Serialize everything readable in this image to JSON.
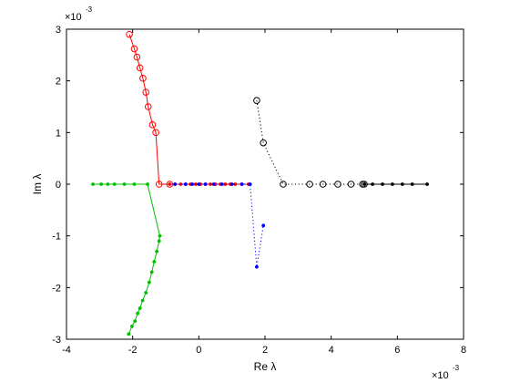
{
  "chart_data": {
    "type": "scatter",
    "title": "",
    "xlabel": "Re λ",
    "ylabel": "Im λ",
    "xlim": [
      -4,
      8
    ],
    "ylim": [
      -3,
      3
    ],
    "xticks": [
      -4,
      -2,
      0,
      2,
      4,
      6,
      8
    ],
    "yticks": [
      -3,
      -2,
      -1,
      0,
      1,
      2,
      3
    ],
    "x_exponent_label": "×10",
    "x_exponent": "-3",
    "y_exponent_label": "×10",
    "y_exponent": "-3",
    "grid": false,
    "legend": "none",
    "series": [
      {
        "color": "#ff0000",
        "marker": "circle",
        "line": "solid",
        "x": [
          -2.1,
          -1.95,
          -1.87,
          -1.78,
          -1.69,
          -1.6,
          -1.53,
          -1.4,
          -1.3,
          -1.2,
          -0.88
        ],
        "y": [
          2.9,
          2.62,
          2.46,
          2.25,
          2.05,
          1.78,
          1.5,
          1.15,
          1.0,
          0.0,
          0.0
        ]
      },
      {
        "color": "#ff0000",
        "marker": "dot",
        "line": "solid",
        "x": [
          -0.88,
          -0.72,
          -0.55,
          -0.4,
          -0.25,
          -0.1,
          0.05,
          0.2,
          0.35,
          0.5,
          0.65,
          0.8,
          0.95,
          1.1,
          1.3,
          1.5
        ],
        "y": [
          0,
          0,
          0,
          0,
          0,
          0,
          0,
          0,
          0,
          0,
          0,
          0,
          0,
          0,
          0,
          0
        ]
      },
      {
        "color": "#0000ff",
        "marker": "dot",
        "line": "dotted",
        "x": [
          -0.72,
          -0.4,
          -0.2,
          0.0,
          0.2,
          0.45,
          0.7,
          1.0,
          1.3,
          1.55,
          1.75,
          1.95
        ],
        "y": [
          0,
          0,
          0,
          0,
          0,
          0,
          0,
          0,
          0,
          0,
          -1.6,
          -0.8
        ]
      },
      {
        "color": "#00c000",
        "marker": "dot",
        "line": "solid",
        "x": [
          -3.2,
          -2.95,
          -2.75,
          -2.55,
          -2.25,
          -1.95,
          -1.55,
          -1.18,
          -1.2,
          -1.27,
          -1.35,
          -1.42,
          -1.5,
          -1.6,
          -1.7,
          -1.78,
          -1.85,
          -1.93,
          -2.02,
          -2.12
        ],
        "y": [
          0,
          0,
          0,
          0,
          0,
          0,
          0,
          -1.0,
          -1.1,
          -1.3,
          -1.5,
          -1.7,
          -1.9,
          -2.1,
          -2.25,
          -2.4,
          -2.5,
          -2.65,
          -2.75,
          -2.9
        ]
      },
      {
        "color": "#000000",
        "marker": "circle",
        "line": "dotted",
        "x": [
          1.75,
          1.95,
          2.55,
          3.35,
          3.75,
          4.2,
          4.6,
          4.95,
          5.0
        ],
        "y": [
          1.62,
          0.8,
          0.0,
          0.0,
          0.0,
          0.0,
          0.0,
          0.0,
          0.0
        ]
      },
      {
        "color": "#000000",
        "marker": "dot",
        "line": "solid",
        "x": [
          5.0,
          5.25,
          5.55,
          5.85,
          6.15,
          6.45,
          6.9
        ],
        "y": [
          0,
          0,
          0,
          0,
          0,
          0,
          0
        ]
      }
    ]
  }
}
